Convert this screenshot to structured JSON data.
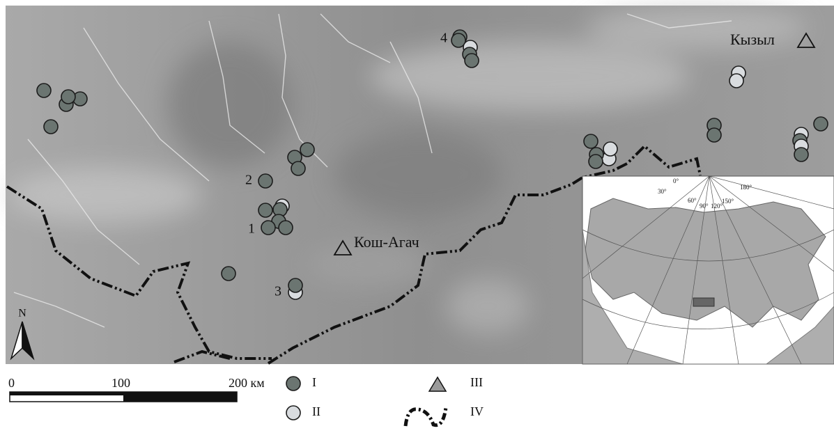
{
  "map": {
    "places": [
      "Кызыл",
      "Кош-Агач"
    ],
    "site_numbers": [
      "1",
      "2",
      "3",
      "4"
    ],
    "north": "N",
    "scale": {
      "labels": [
        "0",
        "100",
        "200 км"
      ]
    },
    "legend": [
      "I",
      "II",
      "III",
      "IV"
    ],
    "inset_degrees": [
      "0°",
      "30°",
      "60°",
      "90°",
      "120°",
      "150°",
      "180°"
    ]
  }
}
